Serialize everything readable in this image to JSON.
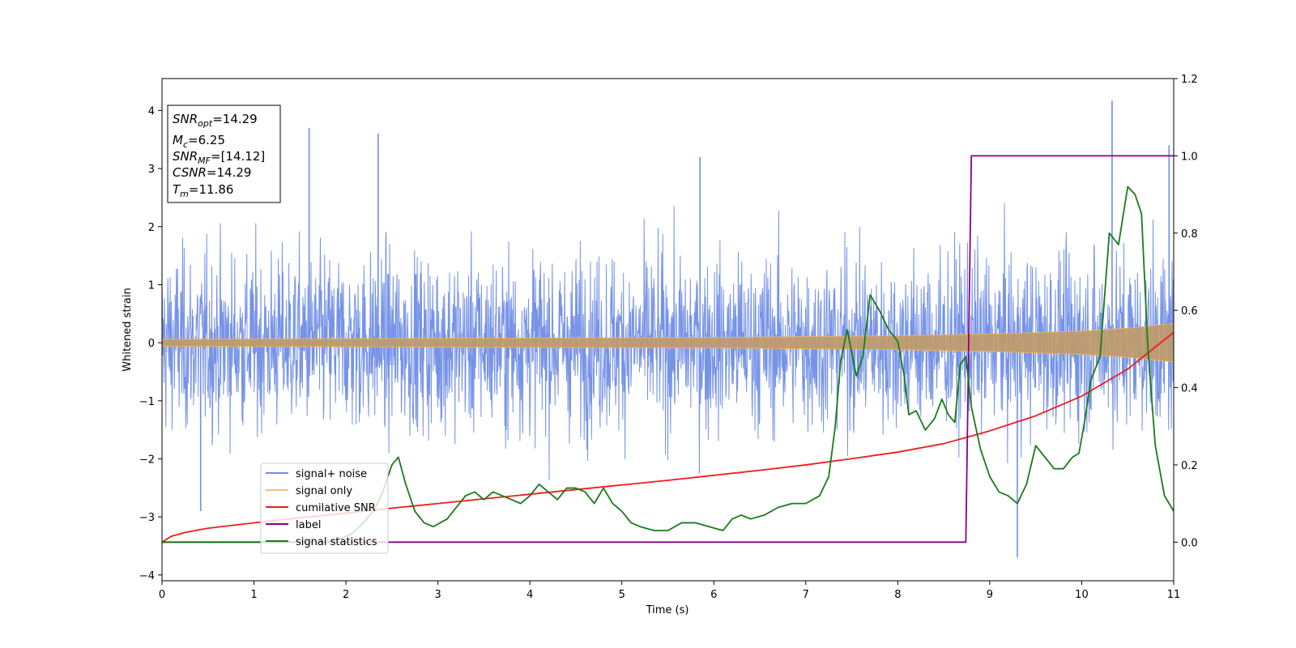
{
  "chart_data": {
    "type": "line",
    "xlabel": "Time (s)",
    "ylabel": "Whitened strain",
    "xlim": [
      0,
      11
    ],
    "ylim_left": [
      -4.1,
      4.55
    ],
    "ylim_right": [
      -0.1,
      1.2
    ],
    "x_ticks": [
      0,
      1,
      2,
      3,
      4,
      5,
      6,
      7,
      8,
      9,
      10,
      11
    ],
    "y_ticks_left": [
      -4,
      -3,
      -2,
      -1,
      0,
      1,
      2,
      3,
      4
    ],
    "y_ticks_right": [
      0.0,
      0.2,
      0.4,
      0.6,
      0.8,
      1.0,
      1.2
    ],
    "y_tick_labels_left": [
      "−4",
      "−3",
      "−2",
      "−1",
      "0",
      "1",
      "2",
      "3",
      "4"
    ],
    "y_tick_labels_right": [
      "0.0",
      "0.2",
      "0.4",
      "0.6",
      "0.8",
      "1.0",
      "1.2"
    ],
    "grid": false,
    "legend_position": "lower-left",
    "stats_box": [
      {
        "sym": "SNR",
        "sub": "opt",
        "value": "=14.29"
      },
      {
        "sym": "M",
        "sub": "c",
        "value": "=6.25"
      },
      {
        "sym": "SNR",
        "sub": "MF",
        "value": "=[14.12]"
      },
      {
        "sym": "CSNR",
        "sub": "",
        "value": "=14.29"
      },
      {
        "sym": "T",
        "sub": "m",
        "value": "=11.86"
      }
    ],
    "series": [
      {
        "name": "signal+ noise",
        "color": "#6f8de6",
        "axis": "left",
        "description_stats": {
          "typical_envelope": [
            -2.2,
            2.2
          ],
          "max": 4.17,
          "max_at": 10.33,
          "min": -3.7,
          "min_at": 9.3
        }
      },
      {
        "name": "signal only",
        "color": "#f5c07a",
        "axis": "left",
        "envelope": {
          "x": [
            0,
            2,
            4,
            6,
            8,
            9,
            10,
            10.5,
            11
          ],
          "amp": [
            0.06,
            0.07,
            0.08,
            0.09,
            0.12,
            0.15,
            0.2,
            0.25,
            0.33
          ]
        }
      },
      {
        "name": "cumilative SNR",
        "color": "#ee1c1c",
        "axis": "right",
        "x": [
          0,
          0.1,
          0.25,
          0.5,
          1,
          1.5,
          2,
          2.5,
          3,
          3.5,
          4,
          4.5,
          5,
          5.5,
          6,
          6.5,
          7,
          7.5,
          8,
          8.5,
          9,
          9.5,
          10,
          10.5,
          11
        ],
        "y": [
          0.0,
          0.015,
          0.025,
          0.036,
          0.05,
          0.063,
          0.075,
          0.088,
          0.1,
          0.112,
          0.124,
          0.136,
          0.148,
          0.16,
          0.173,
          0.186,
          0.2,
          0.216,
          0.233,
          0.255,
          0.288,
          0.327,
          0.378,
          0.448,
          0.543
        ]
      },
      {
        "name": "label",
        "color": "#8b008b",
        "axis": "right",
        "x": [
          0,
          8.74,
          8.8,
          11
        ],
        "y": [
          0.0,
          0.0,
          1.0,
          1.0
        ]
      },
      {
        "name": "signal statistics",
        "color": "#1a7a1a",
        "axis": "right",
        "x": [
          0,
          1.8,
          1.95,
          2.05,
          2.15,
          2.3,
          2.4,
          2.5,
          2.57,
          2.65,
          2.75,
          2.85,
          2.95,
          3.1,
          3.2,
          3.3,
          3.4,
          3.5,
          3.6,
          3.7,
          3.8,
          3.9,
          4.0,
          4.1,
          4.2,
          4.3,
          4.4,
          4.5,
          4.6,
          4.7,
          4.8,
          4.9,
          5.0,
          5.1,
          5.2,
          5.35,
          5.5,
          5.65,
          5.8,
          5.95,
          6.1,
          6.2,
          6.3,
          6.4,
          6.55,
          6.7,
          6.85,
          7.0,
          7.15,
          7.25,
          7.32,
          7.38,
          7.45,
          7.55,
          7.62,
          7.7,
          7.8,
          7.9,
          8.0,
          8.07,
          8.12,
          8.2,
          8.3,
          8.4,
          8.48,
          8.55,
          8.62,
          8.68,
          8.74,
          8.8,
          8.9,
          9.0,
          9.1,
          9.2,
          9.3,
          9.4,
          9.5,
          9.6,
          9.7,
          9.8,
          9.9,
          9.97,
          10.03,
          10.1,
          10.2,
          10.3,
          10.4,
          10.5,
          10.58,
          10.65,
          10.72,
          10.8,
          10.9,
          11.0
        ],
        "y": [
          0.0,
          0.0,
          0.01,
          0.02,
          0.04,
          0.08,
          0.13,
          0.2,
          0.22,
          0.15,
          0.08,
          0.05,
          0.04,
          0.06,
          0.09,
          0.12,
          0.13,
          0.11,
          0.13,
          0.12,
          0.11,
          0.1,
          0.12,
          0.15,
          0.13,
          0.11,
          0.14,
          0.14,
          0.13,
          0.1,
          0.14,
          0.1,
          0.08,
          0.05,
          0.04,
          0.03,
          0.03,
          0.05,
          0.05,
          0.04,
          0.03,
          0.06,
          0.07,
          0.06,
          0.07,
          0.09,
          0.1,
          0.1,
          0.12,
          0.17,
          0.3,
          0.47,
          0.55,
          0.43,
          0.48,
          0.64,
          0.6,
          0.55,
          0.52,
          0.43,
          0.33,
          0.34,
          0.29,
          0.32,
          0.37,
          0.33,
          0.31,
          0.46,
          0.48,
          0.35,
          0.24,
          0.17,
          0.13,
          0.12,
          0.1,
          0.15,
          0.25,
          0.22,
          0.19,
          0.19,
          0.22,
          0.23,
          0.31,
          0.42,
          0.48,
          0.8,
          0.77,
          0.92,
          0.9,
          0.85,
          0.5,
          0.25,
          0.12,
          0.08
        ]
      }
    ]
  }
}
